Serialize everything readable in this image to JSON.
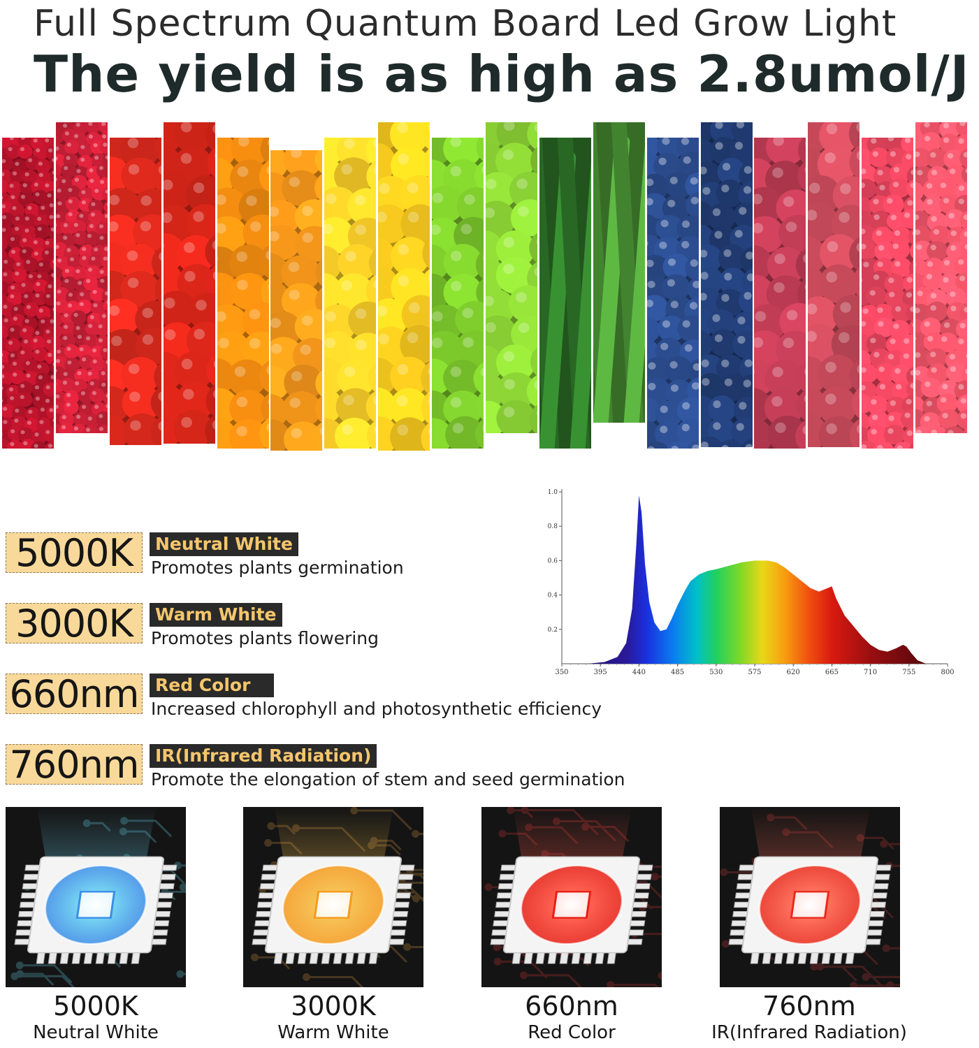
{
  "header": {
    "title": "Full Spectrum Quantum Board Led Grow Light",
    "subtitle": "The yield is as high as 2.8umol/J"
  },
  "fruit_strips": [
    {
      "fruit": "pomegranate",
      "color": "#b3132a"
    },
    {
      "fruit": "pomegranate",
      "color": "#c71f36"
    },
    {
      "fruit": "tomato",
      "color": "#d6281c"
    },
    {
      "fruit": "tomato",
      "color": "#cf2418"
    },
    {
      "fruit": "orange",
      "color": "#f08a10"
    },
    {
      "fruit": "orange",
      "color": "#f4961a"
    },
    {
      "fruit": "lemon",
      "color": "#f7cc28"
    },
    {
      "fruit": "lemon",
      "color": "#f5c71e"
    },
    {
      "fruit": "green-apple",
      "color": "#78c22a"
    },
    {
      "fruit": "green-apple",
      "color": "#86cb33"
    },
    {
      "fruit": "cucumber",
      "color": "#2f7a2a"
    },
    {
      "fruit": "cucumber",
      "color": "#4e9a38"
    },
    {
      "fruit": "blueberry",
      "color": "#2a4a8a"
    },
    {
      "fruit": "blueberry",
      "color": "#203a70"
    },
    {
      "fruit": "grape",
      "color": "#b83a52"
    },
    {
      "fruit": "grape",
      "color": "#c24858"
    },
    {
      "fruit": "raspberry",
      "color": "#e8455e"
    },
    {
      "fruit": "raspberry",
      "color": "#f05468"
    }
  ],
  "specs": [
    {
      "value": "5000K",
      "tag": "Neutral White",
      "desc": "Promotes plants germination"
    },
    {
      "value": "3000K",
      "tag": "Warm White",
      "desc": "Promotes plants flowering"
    },
    {
      "value": "660nm",
      "tag": "Red Color",
      "desc": "Increased chlorophyll and photosynthetic efficiency"
    },
    {
      "value": "760nm",
      "tag": "IR(Infrared Radiation)",
      "desc": "Promote the elongation of stem and seed germination"
    }
  ],
  "chart_data": {
    "type": "area",
    "title": "",
    "xlabel": "",
    "ylabel": "",
    "xlim": [
      350,
      800
    ],
    "ylim": [
      0,
      1.0
    ],
    "x_ticks": [
      350,
      395,
      440,
      485,
      530,
      575,
      620,
      665,
      710,
      755,
      800
    ],
    "y_ticks": [
      0.2,
      0.4,
      0.6,
      0.8,
      1.0
    ],
    "y_tick_labels": [
      "0.2",
      "0.4",
      "0.6",
      "0.8",
      "1.0"
    ],
    "grid": false,
    "series": [
      {
        "x": [
          350,
          380,
          400,
          415,
          425,
          432,
          437,
          440,
          443,
          447,
          452,
          458,
          465,
          472,
          478,
          485,
          493,
          500,
          510,
          520,
          530,
          545,
          560,
          575,
          590,
          600,
          610,
          620,
          630,
          640,
          650,
          660,
          665,
          670,
          680,
          690,
          700,
          710,
          720,
          730,
          740,
          748,
          752,
          758,
          765,
          775,
          790,
          800
        ],
        "y": [
          0.0,
          0.0,
          0.01,
          0.04,
          0.12,
          0.32,
          0.7,
          0.98,
          0.88,
          0.58,
          0.36,
          0.24,
          0.19,
          0.2,
          0.26,
          0.34,
          0.42,
          0.48,
          0.52,
          0.54,
          0.55,
          0.57,
          0.59,
          0.6,
          0.6,
          0.59,
          0.56,
          0.52,
          0.48,
          0.44,
          0.42,
          0.44,
          0.45,
          0.38,
          0.28,
          0.22,
          0.16,
          0.11,
          0.08,
          0.07,
          0.09,
          0.11,
          0.1,
          0.06,
          0.02,
          0.0,
          0.0,
          0.0
        ]
      }
    ]
  },
  "chips": [
    {
      "value": "5000K",
      "name": "Neutral White",
      "glow": "#6fd3f2",
      "core": "#3a8ee8",
      "tint": "#2d4e55"
    },
    {
      "value": "3000K",
      "name": "Warm White",
      "glow": "#f7c04d",
      "core": "#f59a1c",
      "tint": "#4e3b22"
    },
    {
      "value": "660nm",
      "name": "Red Color",
      "glow": "#ff5a48",
      "core": "#e81e14",
      "tint": "#4e1f1f"
    },
    {
      "value": "760nm",
      "name": "IR(Infrared Radiation)",
      "glow": "#ff6a56",
      "core": "#ea2a1a",
      "tint": "#4a2020"
    }
  ]
}
